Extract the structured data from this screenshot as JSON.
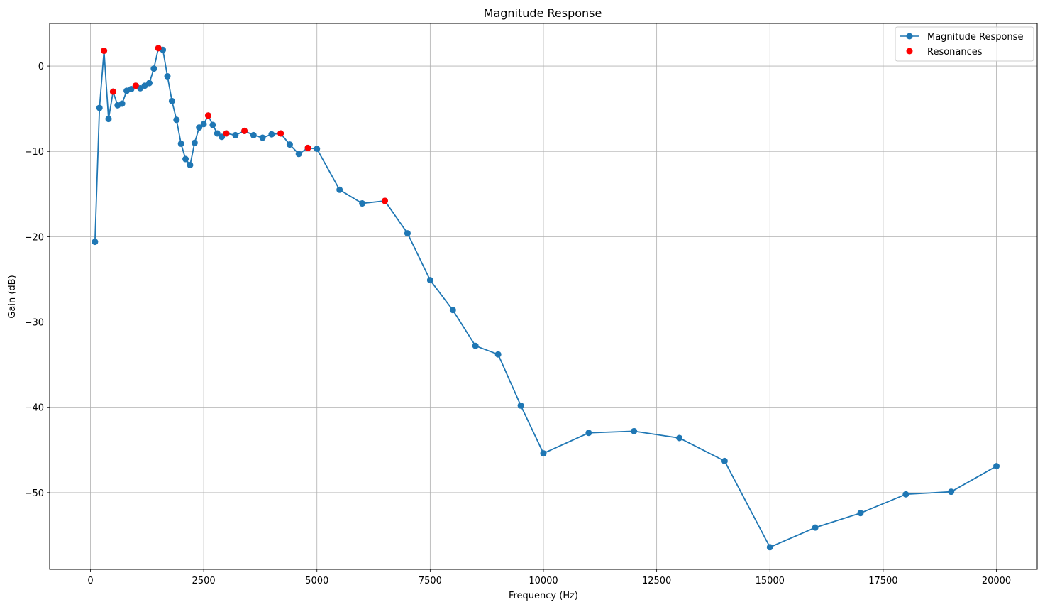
{
  "chart_data": {
    "type": "line",
    "title": "Magnitude Response",
    "xlabel": "Frequency (Hz)",
    "ylabel": "Gain (dB)",
    "xlim": [
      -900,
      20900
    ],
    "ylim": [
      -59,
      5
    ],
    "grid": true,
    "legend_position": "top-right",
    "xticks": [
      0,
      2500,
      5000,
      7500,
      10000,
      12500,
      15000,
      17500,
      20000
    ],
    "xtick_labels": [
      "0",
      "2500",
      "5000",
      "7500",
      "10000",
      "12500",
      "15000",
      "17500",
      "20000"
    ],
    "yticks": [
      0,
      -10,
      -20,
      -30,
      -40,
      -50
    ],
    "ytick_labels": [
      "0",
      "−10",
      "−20",
      "−30",
      "−40",
      "−50"
    ],
    "series": [
      {
        "name": "Magnitude Response",
        "kind": "line-marker",
        "color": "#1f77b4",
        "x": [
          100,
          200,
          300,
          400,
          500,
          600,
          700,
          800,
          900,
          1000,
          1100,
          1200,
          1300,
          1400,
          1500,
          1600,
          1700,
          1800,
          1900,
          2000,
          2100,
          2200,
          2300,
          2400,
          2500,
          2600,
          2700,
          2800,
          2900,
          3000,
          3200,
          3400,
          3600,
          3800,
          4000,
          4200,
          4400,
          4600,
          4800,
          5000,
          5500,
          6000,
          6500,
          7000,
          7500,
          8000,
          8500,
          9000,
          9500,
          10000,
          11000,
          12000,
          13000,
          14000,
          15000,
          16000,
          17000,
          18000,
          19000,
          20000
        ],
        "y": [
          -20.6,
          -4.9,
          1.8,
          -6.2,
          -3.0,
          -4.6,
          -4.4,
          -2.9,
          -2.7,
          -2.3,
          -2.6,
          -2.3,
          -2.0,
          -0.3,
          2.1,
          1.9,
          -1.2,
          -4.1,
          -6.3,
          -9.1,
          -10.9,
          -11.6,
          -9.0,
          -7.2,
          -6.8,
          -5.8,
          -6.9,
          -7.9,
          -8.3,
          -7.9,
          -8.1,
          -7.6,
          -8.1,
          -8.4,
          -8.0,
          -7.9,
          -9.2,
          -10.3,
          -9.6,
          -9.7,
          -14.5,
          -16.1,
          -15.8,
          -19.6,
          -25.1,
          -28.6,
          -32.8,
          -33.8,
          -39.8,
          -45.4,
          -43.0,
          -42.8,
          -43.6,
          -46.3,
          -56.4,
          -54.1,
          -52.4,
          -50.2,
          -49.9,
          -46.9
        ]
      },
      {
        "name": "Resonances",
        "kind": "scatter",
        "color": "#ff0000",
        "x": [
          300,
          500,
          1000,
          1500,
          2600,
          3000,
          3400,
          4200,
          4800,
          6500
        ],
        "y": [
          1.8,
          -3.0,
          -2.3,
          2.1,
          -5.8,
          -7.9,
          -7.6,
          -7.9,
          -9.6,
          -15.8
        ]
      }
    ]
  }
}
